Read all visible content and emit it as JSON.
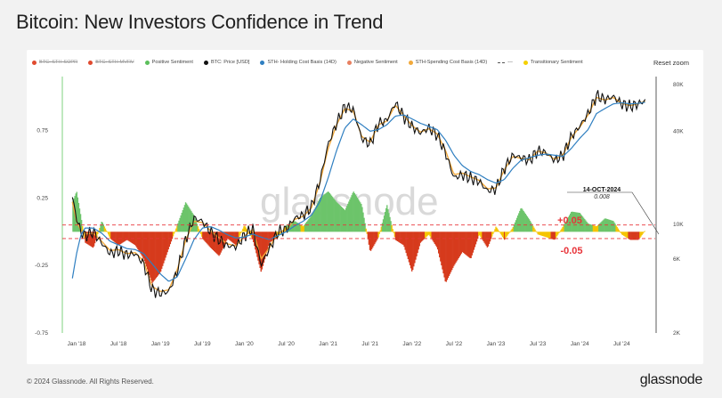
{
  "title": "Bitcoin: New Investors Confidence in Trend",
  "toolbar": {
    "reset_zoom": "Reset zoom"
  },
  "legend": [
    {
      "label": "BTC: STH-SOPR",
      "color": "#e04a2f",
      "style": "dot",
      "disabled": true
    },
    {
      "label": "BTC: STH-MVRV",
      "color": "#e04a2f",
      "style": "dot",
      "disabled": true
    },
    {
      "label": "Positive Sentiment",
      "color": "#5cbf5c",
      "style": "dot",
      "disabled": false
    },
    {
      "label": "BTC: Price [USD]",
      "color": "#111111",
      "style": "dot",
      "disabled": false
    },
    {
      "label": "STH- Holding Cost Basis (14D)",
      "color": "#2f7fc1",
      "style": "dot",
      "disabled": false
    },
    {
      "label": "Negative Sentiment",
      "color": "#e88060",
      "style": "dot",
      "disabled": false
    },
    {
      "label": "STH-Spending Cost Basis (14D)",
      "color": "#f2a93b",
      "style": "dot",
      "disabled": false
    },
    {
      "label": "---",
      "color": "#555555",
      "style": "dash",
      "disabled": false
    },
    {
      "label": "Transitionary Sentiment",
      "color": "#f5d000",
      "style": "dot",
      "disabled": false
    }
  ],
  "watermark": "glassnode",
  "annotations": {
    "callout_date": "14-OCT-2024",
    "callout_value": "0.008",
    "upper_band": "+0.05",
    "lower_band": "-0.05"
  },
  "footer": {
    "copyright": "© 2024 Glassnode. All Rights Reserved.",
    "brand": "glassnode"
  },
  "colors": {
    "positive": "#6cc46a",
    "negative": "#d63a1c",
    "transitionary": "#f5c400",
    "price": "#111111",
    "holding": "#2f7fc1",
    "spending": "#f2a93b",
    "band": "#e8343a"
  },
  "chart_data": {
    "type": "area",
    "x_ticks": [
      "Jan '18",
      "Jul '18",
      "Jan '19",
      "Jul '19",
      "Jan '20",
      "Jul '20",
      "Jan '21",
      "Jul '21",
      "Jan '22",
      "Jul '22",
      "Jan '23",
      "Jul '23",
      "Jan '24",
      "Jul '24"
    ],
    "left_axis": {
      "ticks": [
        "0.75",
        "0.25",
        "-0.25",
        "-0.75"
      ],
      "values": [
        0.75,
        0.25,
        -0.25,
        -0.75
      ],
      "range": [
        -0.75,
        1.15
      ]
    },
    "right_axis": {
      "ticks": [
        "80K",
        "40K",
        "10K",
        "6K",
        "2K"
      ],
      "values": [
        80000,
        40000,
        10000,
        6000,
        2000
      ],
      "scale": "log",
      "range": [
        2000,
        90000
      ]
    },
    "bands": [
      0.05,
      -0.05
    ],
    "x": [
      2017.95,
      2018.0,
      2018.05,
      2018.1,
      2018.2,
      2018.3,
      2018.4,
      2018.5,
      2018.6,
      2018.7,
      2018.8,
      2018.9,
      2019.0,
      2019.1,
      2019.2,
      2019.3,
      2019.4,
      2019.5,
      2019.6,
      2019.7,
      2019.8,
      2019.9,
      2020.0,
      2020.1,
      2020.2,
      2020.3,
      2020.4,
      2020.5,
      2020.6,
      2020.7,
      2020.8,
      2020.9,
      2021.0,
      2021.1,
      2021.2,
      2021.3,
      2021.4,
      2021.5,
      2021.6,
      2021.7,
      2021.8,
      2021.9,
      2022.0,
      2022.1,
      2022.2,
      2022.3,
      2022.4,
      2022.5,
      2022.6,
      2022.7,
      2022.8,
      2022.9,
      2023.0,
      2023.1,
      2023.2,
      2023.3,
      2023.4,
      2023.5,
      2023.6,
      2023.7,
      2023.8,
      2023.9,
      2024.0,
      2024.1,
      2024.2,
      2024.3,
      2024.4,
      2024.5,
      2024.6,
      2024.7,
      2024.78
    ],
    "series": [
      {
        "name": "Positive Sentiment / Negative Sentiment",
        "values": [
          0.22,
          0.3,
          0.12,
          -0.08,
          -0.12,
          0.08,
          -0.05,
          -0.1,
          -0.06,
          -0.1,
          -0.2,
          -0.38,
          -0.3,
          -0.12,
          0.05,
          0.22,
          0.12,
          -0.05,
          -0.12,
          -0.18,
          -0.05,
          -0.1,
          0.05,
          -0.06,
          -0.3,
          -0.08,
          -0.04,
          0.05,
          0.08,
          0.04,
          0.12,
          0.25,
          0.3,
          0.22,
          0.16,
          0.3,
          0.2,
          -0.15,
          -0.04,
          0.2,
          -0.06,
          -0.1,
          -0.3,
          -0.08,
          -0.02,
          -0.12,
          -0.38,
          -0.25,
          -0.15,
          -0.2,
          -0.02,
          -0.12,
          0.04,
          -0.06,
          0.03,
          0.18,
          0.09,
          -0.02,
          -0.04,
          -0.06,
          0.04,
          0.15,
          0.14,
          0.06,
          0.04,
          0.1,
          0.08,
          -0.02,
          -0.06,
          -0.06,
          0.01
        ]
      },
      {
        "name": "BTC: Price [USD]",
        "values": [
          15000,
          11000,
          9000,
          8500,
          9000,
          7600,
          6500,
          6800,
          6400,
          6500,
          5600,
          3800,
          3600,
          3700,
          5000,
          8000,
          11000,
          10500,
          9000,
          8000,
          7300,
          7200,
          8500,
          9500,
          5500,
          7000,
          9000,
          9300,
          11000,
          11500,
          13000,
          19000,
          33000,
          45000,
          58000,
          55000,
          36000,
          33000,
          45000,
          47000,
          61000,
          50000,
          43000,
          39000,
          42000,
          38000,
          29000,
          20000,
          21000,
          20000,
          19000,
          16500,
          17000,
          23000,
          28000,
          27000,
          26000,
          30000,
          29000,
          26000,
          28000,
          37000,
          43000,
          52000,
          68000,
          64000,
          67000,
          60000,
          58000,
          60000,
          63000
        ]
      },
      {
        "name": "STH- Holding Cost Basis (14D)",
        "values": [
          4500,
          6500,
          8500,
          9500,
          9500,
          8800,
          7800,
          7400,
          7000,
          6900,
          6500,
          5600,
          4800,
          4300,
          4600,
          6000,
          8000,
          9500,
          9700,
          9200,
          8600,
          8200,
          8300,
          8700,
          8300,
          8000,
          8500,
          9000,
          9800,
          10500,
          11500,
          14000,
          20000,
          30000,
          42000,
          48000,
          44000,
          40000,
          41000,
          44000,
          50000,
          51000,
          48000,
          45000,
          43000,
          41000,
          35000,
          28000,
          24000,
          22000,
          21000,
          19500,
          18500,
          19500,
          23000,
          26000,
          27000,
          28000,
          28500,
          28000,
          27500,
          31000,
          36000,
          41000,
          52000,
          56000,
          60000,
          61000,
          60000,
          60500,
          61500
        ]
      },
      {
        "name": "STH-Spending Cost Basis (14D)",
        "values": [
          14000,
          10500,
          9200,
          8700,
          8800,
          7800,
          6800,
          6900,
          6500,
          6600,
          5800,
          4000,
          3700,
          3800,
          5100,
          7900,
          10500,
          10300,
          9100,
          8200,
          7500,
          7300,
          8400,
          9300,
          6000,
          7100,
          8900,
          9200,
          10800,
          11300,
          12800,
          18500,
          31000,
          44000,
          56000,
          54000,
          37000,
          34000,
          44000,
          46500,
          59000,
          50500,
          43500,
          39500,
          41500,
          38500,
          30000,
          21000,
          21500,
          20300,
          19300,
          17000,
          17200,
          22500,
          27500,
          26800,
          26200,
          29800,
          28900,
          26300,
          28100,
          36500,
          42500,
          51000,
          66000,
          63500,
          66000,
          60500,
          58500,
          60200,
          62500
        ]
      }
    ]
  }
}
